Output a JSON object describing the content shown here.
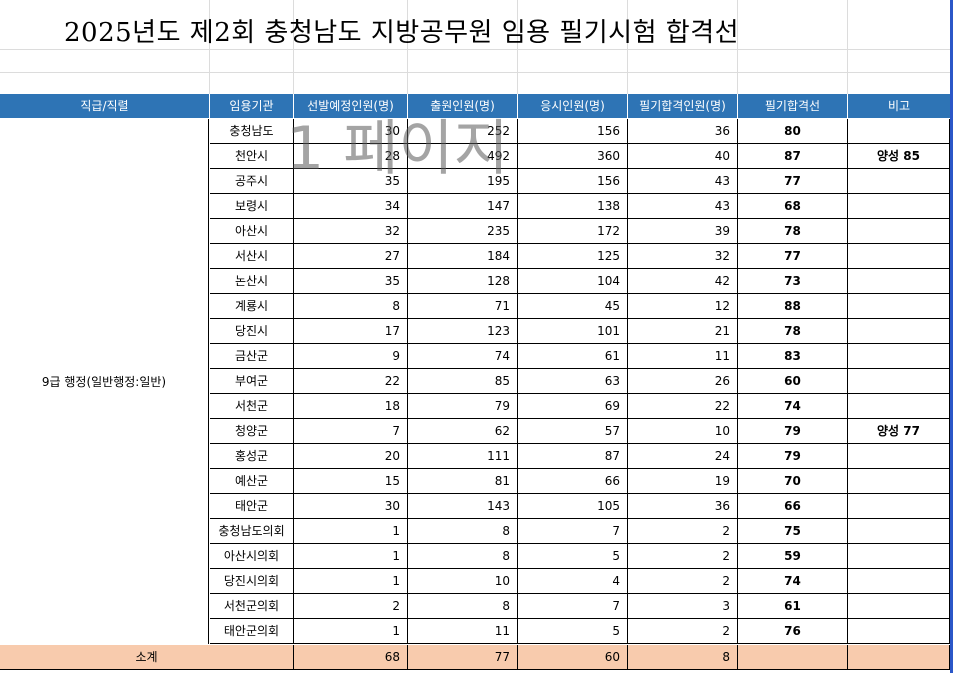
{
  "title": "2025년도 제2회 충청남도 지방공무원 임용 필기시험 합격선",
  "watermark": "1 페이지",
  "headers": [
    "직급/직렬",
    "임용기관",
    "선발예정인원(명)",
    "출원인원(명)",
    "응시인원(명)",
    "필기합격인원(명)",
    "필기합격선",
    "비고"
  ],
  "job": "9급 행정(일반행정:일반)",
  "rows": [
    {
      "org": "충청남도",
      "plan": "30",
      "apply": "252",
      "take": "156",
      "pass": "36",
      "cut": "80",
      "note": ""
    },
    {
      "org": "천안시",
      "plan": "28",
      "apply": "492",
      "take": "360",
      "pass": "40",
      "cut": "87",
      "note": "양성 85"
    },
    {
      "org": "공주시",
      "plan": "35",
      "apply": "195",
      "take": "156",
      "pass": "43",
      "cut": "77",
      "note": ""
    },
    {
      "org": "보령시",
      "plan": "34",
      "apply": "147",
      "take": "138",
      "pass": "43",
      "cut": "68",
      "note": ""
    },
    {
      "org": "아산시",
      "plan": "32",
      "apply": "235",
      "take": "172",
      "pass": "39",
      "cut": "78",
      "note": ""
    },
    {
      "org": "서산시",
      "plan": "27",
      "apply": "184",
      "take": "125",
      "pass": "32",
      "cut": "77",
      "note": ""
    },
    {
      "org": "논산시",
      "plan": "35",
      "apply": "128",
      "take": "104",
      "pass": "42",
      "cut": "73",
      "note": ""
    },
    {
      "org": "계룡시",
      "plan": "8",
      "apply": "71",
      "take": "45",
      "pass": "12",
      "cut": "88",
      "note": ""
    },
    {
      "org": "당진시",
      "plan": "17",
      "apply": "123",
      "take": "101",
      "pass": "21",
      "cut": "78",
      "note": ""
    },
    {
      "org": "금산군",
      "plan": "9",
      "apply": "74",
      "take": "61",
      "pass": "11",
      "cut": "83",
      "note": ""
    },
    {
      "org": "부여군",
      "plan": "22",
      "apply": "85",
      "take": "63",
      "pass": "26",
      "cut": "60",
      "note": ""
    },
    {
      "org": "서천군",
      "plan": "18",
      "apply": "79",
      "take": "69",
      "pass": "22",
      "cut": "74",
      "note": ""
    },
    {
      "org": "청양군",
      "plan": "7",
      "apply": "62",
      "take": "57",
      "pass": "10",
      "cut": "79",
      "note": "양성 77"
    },
    {
      "org": "홍성군",
      "plan": "20",
      "apply": "111",
      "take": "87",
      "pass": "24",
      "cut": "79",
      "note": ""
    },
    {
      "org": "예산군",
      "plan": "15",
      "apply": "81",
      "take": "66",
      "pass": "19",
      "cut": "70",
      "note": ""
    },
    {
      "org": "태안군",
      "plan": "30",
      "apply": "143",
      "take": "105",
      "pass": "36",
      "cut": "66",
      "note": ""
    },
    {
      "org": "충청남도의회",
      "plan": "1",
      "apply": "8",
      "take": "7",
      "pass": "2",
      "cut": "75",
      "note": ""
    },
    {
      "org": "아산시의회",
      "plan": "1",
      "apply": "8",
      "take": "5",
      "pass": "2",
      "cut": "59",
      "note": ""
    },
    {
      "org": "당진시의회",
      "plan": "1",
      "apply": "10",
      "take": "4",
      "pass": "2",
      "cut": "74",
      "note": ""
    },
    {
      "org": "서천군의회",
      "plan": "2",
      "apply": "8",
      "take": "7",
      "pass": "3",
      "cut": "61",
      "note": ""
    },
    {
      "org": "태안군의회",
      "plan": "1",
      "apply": "11",
      "take": "5",
      "pass": "2",
      "cut": "76",
      "note": ""
    }
  ],
  "subtotal": {
    "label": "소계",
    "plan": "68",
    "apply": "77",
    "take": "60",
    "pass": "8"
  },
  "colors": {
    "header_bg": "#2e74b5",
    "subtotal_bg": "#f8cbad",
    "right_border": "#2b57c8"
  }
}
